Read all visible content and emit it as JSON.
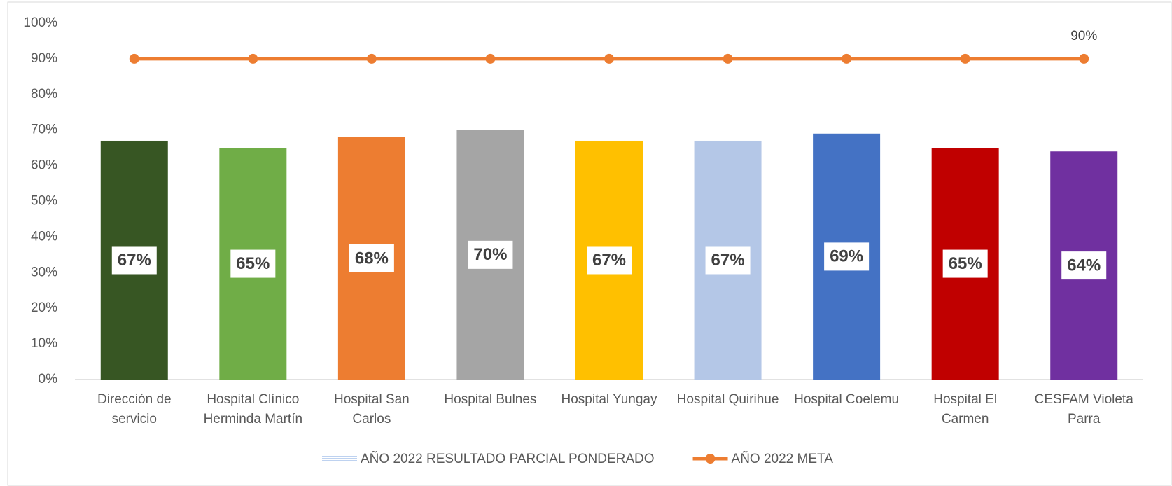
{
  "chart_data": {
    "type": "bar",
    "categories": [
      "Dirección de servicio",
      "Hospital Clínico Herminda Martín",
      "Hospital San Carlos",
      "Hospital Bulnes",
      "Hospital Yungay",
      "Hospital Quirihue",
      "Hospital Coelemu",
      "Hospital El Carmen",
      "CESFAM Violeta Parra"
    ],
    "series": [
      {
        "name": "AÑO 2022 RESULTADO PARCIAL PONDERADO",
        "type": "bar",
        "color": "#a9c4eb",
        "colors": [
          "#375623",
          "#70ad47",
          "#ed7d31",
          "#a5a5a5",
          "#ffc000",
          "#b4c7e7",
          "#4472c4",
          "#c00000",
          "#7030a0"
        ],
        "values": [
          67,
          65,
          68,
          70,
          67,
          67,
          69,
          65,
          64
        ],
        "value_labels": [
          "67%",
          "65%",
          "68%",
          "70%",
          "67%",
          "67%",
          "69%",
          "65%",
          "64%"
        ]
      },
      {
        "name": "AÑO 2022 META",
        "type": "line",
        "color": "#ed7d31",
        "values": [
          90,
          90,
          90,
          90,
          90,
          90,
          90,
          90,
          90
        ],
        "value_labels": [
          null,
          null,
          null,
          null,
          null,
          null,
          null,
          null,
          "90%"
        ]
      }
    ],
    "ylim": [
      0,
      100
    ],
    "yticks": [
      {
        "value": 0,
        "label": "0%"
      },
      {
        "value": 10,
        "label": "10%"
      },
      {
        "value": 20,
        "label": "20%"
      },
      {
        "value": 30,
        "label": "30%"
      },
      {
        "value": 40,
        "label": "40%"
      },
      {
        "value": 50,
        "label": "50%"
      },
      {
        "value": 60,
        "label": "60%"
      },
      {
        "value": 70,
        "label": "70%"
      },
      {
        "value": 80,
        "label": "80%"
      },
      {
        "value": 90,
        "label": "90%"
      },
      {
        "value": 100,
        "label": "100%"
      }
    ],
    "grid": false,
    "legend": "bottom"
  }
}
